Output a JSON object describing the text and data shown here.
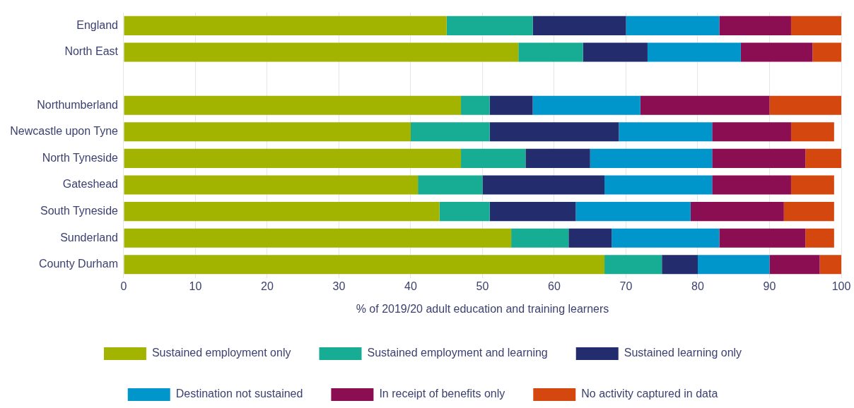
{
  "chart_data": {
    "type": "bar",
    "orientation": "horizontal",
    "stacked": true,
    "categories": [
      "England",
      "North East",
      null,
      "Northumberland",
      "Newcastle upon Tyne",
      "North Tyneside",
      "Gateshead",
      "South Tyneside",
      "Sunderland",
      "County Durham"
    ],
    "series": [
      {
        "name": "Sustained employment only",
        "color": "#a2b400",
        "values": [
          45,
          55,
          null,
          47,
          40,
          47,
          41,
          44,
          54,
          67
        ]
      },
      {
        "name": "Sustained employment and learning",
        "color": "#17ad94",
        "values": [
          12,
          9,
          null,
          4,
          11,
          9,
          9,
          7,
          8,
          8
        ]
      },
      {
        "name": "Sustained learning only",
        "color": "#232c6c",
        "values": [
          13,
          9,
          null,
          6,
          18,
          9,
          17,
          12,
          6,
          5
        ]
      },
      {
        "name": "Destination not sustained",
        "color": "#0096cc",
        "values": [
          13,
          13,
          null,
          15,
          13,
          17,
          15,
          16,
          15,
          10
        ]
      },
      {
        "name": "In receipt of benefits only",
        "color": "#8b0d52",
        "values": [
          10,
          10,
          null,
          18,
          11,
          13,
          11,
          13,
          12,
          7
        ]
      },
      {
        "name": "No activity captured in data",
        "color": "#d4480f",
        "values": [
          7,
          4,
          null,
          10,
          6,
          5,
          6,
          7,
          4,
          3
        ]
      }
    ],
    "xlabel": "% of 2019/20 adult education and training learners",
    "xlim": [
      0,
      100
    ],
    "xticks": [
      0,
      10,
      20,
      30,
      40,
      50,
      60,
      70,
      80,
      90,
      100
    ],
    "grid": "x",
    "legend": "bottom"
  }
}
